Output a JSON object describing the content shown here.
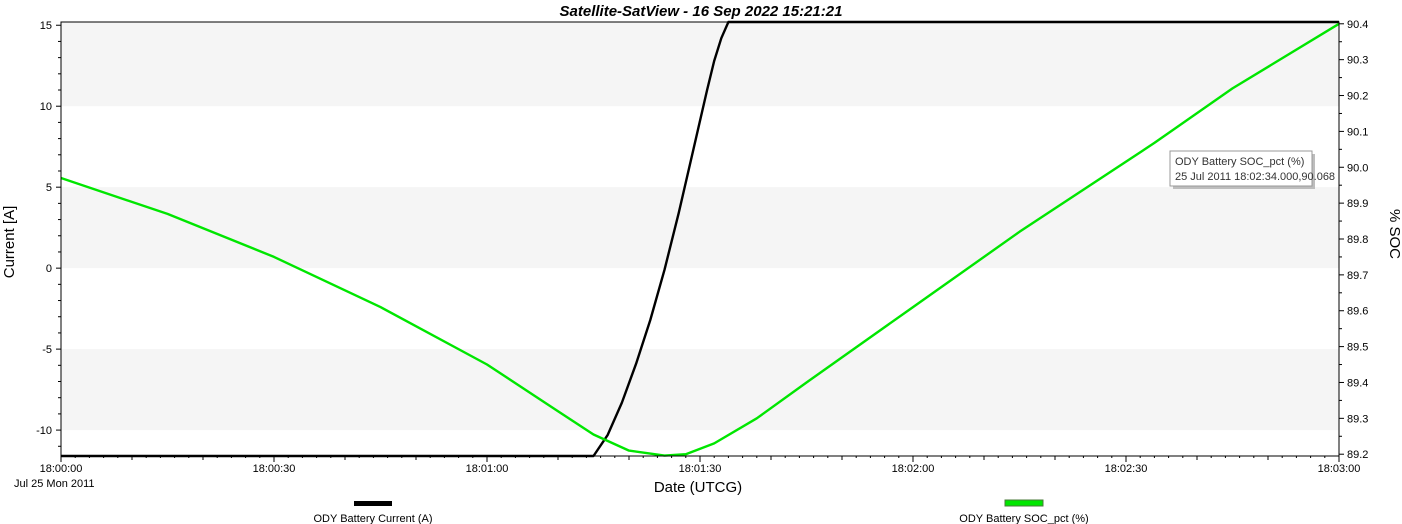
{
  "chart_data": {
    "type": "line",
    "title": "Satellite-SatView - 16 Sep 2022 15:21:21",
    "xlabel": "Date (UTCG)",
    "ylabel_left": "Current [A]",
    "ylabel_right": "% SOC",
    "x_ticks": [
      "18:00:00",
      "18:00:30",
      "18:01:00",
      "18:01:30",
      "18:02:00",
      "18:02:30",
      "18:03:00"
    ],
    "x_date_label": "Jul 25 Mon 2011",
    "x_range_seconds": [
      0,
      180
    ],
    "y_left_ticks": [
      "15",
      "10",
      "5",
      "0",
      "-5",
      "-10"
    ],
    "y_left_range": [
      -11.6,
      15.2
    ],
    "y_right_ticks": [
      "90.4",
      "90.3",
      "90.2",
      "90.1",
      "90.0",
      "89.9",
      "89.8",
      "89.7",
      "89.6",
      "89.5",
      "89.4",
      "89.3",
      "89.2"
    ],
    "y_right_range": [
      89.195,
      90.405
    ],
    "grid": "alternating horizontal bands",
    "legend_placement": "bottom",
    "series": [
      {
        "name": "ODY Battery Current (A)",
        "axis": "left",
        "color": "#000000",
        "x_time": [
          "18:00:00",
          "18:01:15",
          "18:01:17",
          "18:01:19",
          "18:01:21",
          "18:01:23",
          "18:01:25",
          "18:01:27",
          "18:01:29",
          "18:01:31",
          "18:01:32",
          "18:01:33",
          "18:01:34",
          "18:03:00"
        ],
        "y": [
          -11.6,
          -11.6,
          -10.3,
          -8.3,
          -5.9,
          -3.2,
          -0.1,
          3.4,
          7.2,
          11.0,
          12.8,
          14.2,
          15.2,
          15.2
        ]
      },
      {
        "name": "ODY Battery SOC_pct (%)",
        "axis": "right",
        "color": "#00e600",
        "x_time": [
          "18:00:00",
          "18:00:15",
          "18:00:30",
          "18:00:45",
          "18:01:00",
          "18:01:10",
          "18:01:15",
          "18:01:20",
          "18:01:25",
          "18:01:28",
          "18:01:32",
          "18:01:38",
          "18:01:45",
          "18:02:00",
          "18:02:15",
          "18:02:34",
          "18:02:45",
          "18:03:00"
        ],
        "y": [
          89.97,
          89.87,
          89.75,
          89.61,
          89.45,
          89.32,
          89.255,
          89.21,
          89.196,
          89.2,
          89.23,
          89.3,
          89.4,
          89.61,
          89.82,
          90.068,
          90.22,
          90.4
        ]
      }
    ],
    "tooltip": {
      "line1": "ODY Battery SOC_pct (%)",
      "line2": "25 Jul 2011 18:02:34.000,90.068"
    }
  }
}
